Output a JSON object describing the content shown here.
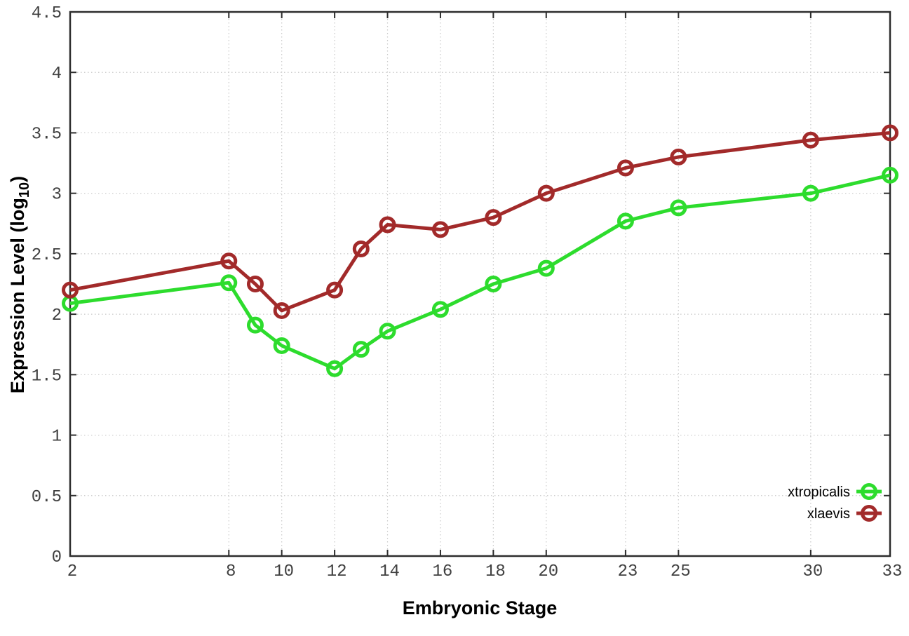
{
  "figure": {
    "background": "#ffffff",
    "xlabel": "Embryonic Stage",
    "ylabel": {
      "main": "Expression Level (log",
      "sub": "10",
      "close": ")"
    }
  },
  "chart_data": {
    "type": "line",
    "title": "",
    "xlabel": "Embryonic Stage",
    "ylabel": "Expression Level (log10)",
    "xlim": [
      2,
      33
    ],
    "ylim": [
      0,
      4.5
    ],
    "grid": true,
    "legend_position": "inside-bottom-right",
    "x": [
      2,
      8,
      9,
      10,
      12,
      13,
      14,
      16,
      18,
      20,
      23,
      25,
      30,
      33
    ],
    "xtick_values": [
      2,
      8,
      10,
      12,
      14,
      16,
      18,
      20,
      23,
      25,
      30,
      33
    ],
    "xtick_labels": [
      "2",
      "8",
      "10",
      "12",
      "14",
      "16",
      "18",
      "20",
      "23",
      "25",
      "30",
      "33"
    ],
    "ytick_values": [
      0,
      0.5,
      1,
      1.5,
      2,
      2.5,
      3,
      3.5,
      4,
      4.5
    ],
    "ytick_labels": [
      "0",
      "0.5",
      "1",
      "1.5",
      "2",
      "2.5",
      "3",
      "3.5",
      "4",
      "4.5"
    ],
    "series": [
      {
        "name": "xtropicalis",
        "color": "#2ddc2d",
        "values": [
          2.09,
          2.26,
          1.91,
          1.74,
          1.55,
          1.71,
          1.86,
          2.04,
          2.25,
          2.38,
          2.77,
          2.88,
          3.0,
          3.15
        ]
      },
      {
        "name": "xlaevis",
        "color": "#a22a2a",
        "values": [
          2.2,
          2.44,
          2.25,
          2.03,
          2.2,
          2.54,
          2.74,
          2.7,
          2.8,
          3.0,
          3.21,
          3.3,
          3.44,
          3.5
        ]
      }
    ],
    "style": {
      "grid_color": "#c8c8c8",
      "border_color": "#2d2d2d",
      "tick_label_color": "#404040",
      "marker": "open-circle"
    }
  }
}
